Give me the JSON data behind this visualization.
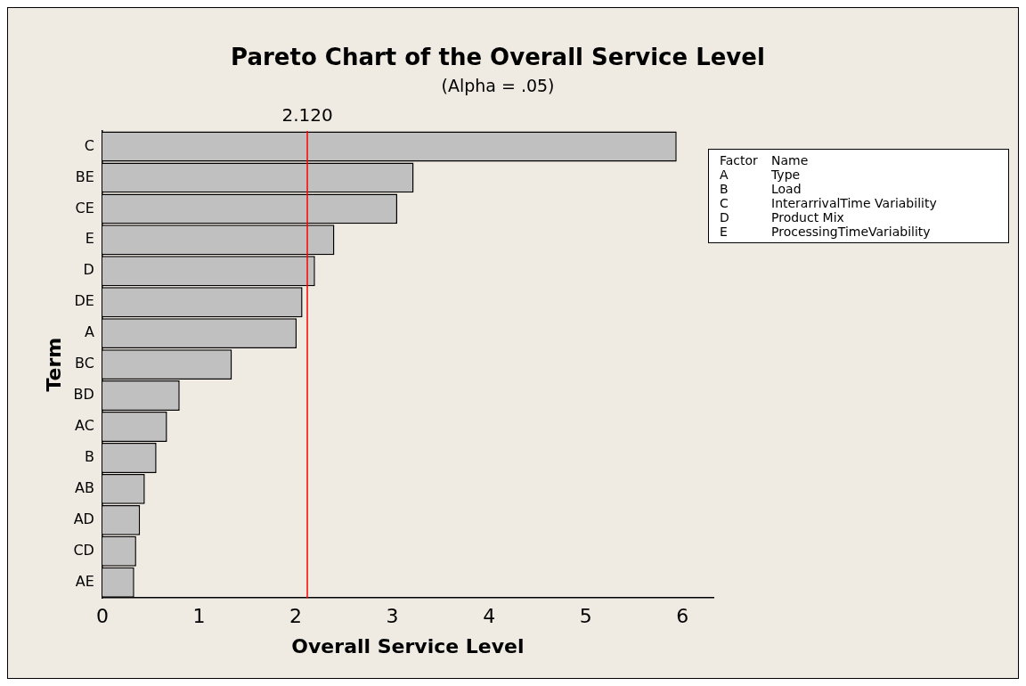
{
  "chart_data": {
    "type": "bar",
    "orientation": "horizontal",
    "title": "Pareto Chart of the Overall Service Level",
    "subtitle": "(Alpha = .05)",
    "xlabel": "Overall Service Level",
    "ylabel": "Term",
    "categories": [
      "C",
      "BE",
      "CE",
      "E",
      "D",
      "DE",
      "A",
      "BC",
      "BD",
      "AC",
      "B",
      "AB",
      "AD",
      "CD",
      "AE"
    ],
    "values": [
      5.94,
      3.22,
      3.05,
      2.4,
      2.2,
      2.07,
      2.01,
      1.34,
      0.8,
      0.67,
      0.56,
      0.44,
      0.39,
      0.35,
      0.33
    ],
    "color": "#c0c0c0",
    "xlim": [
      0,
      6.32
    ],
    "xticks": [
      0,
      1,
      2,
      3,
      4,
      5,
      6
    ],
    "grid": false,
    "legend": false,
    "ref_lines": [
      {
        "axis": "x",
        "value": 2.12,
        "label": "2.120",
        "color": "#ff0000"
      }
    ],
    "annotations": [
      "Factor\tName",
      "A\tType",
      "B\tLoad",
      "C\tInterarrivalTime Variability",
      "D\tProduct Mix",
      "E\tProcessingTimeVariability"
    ]
  }
}
